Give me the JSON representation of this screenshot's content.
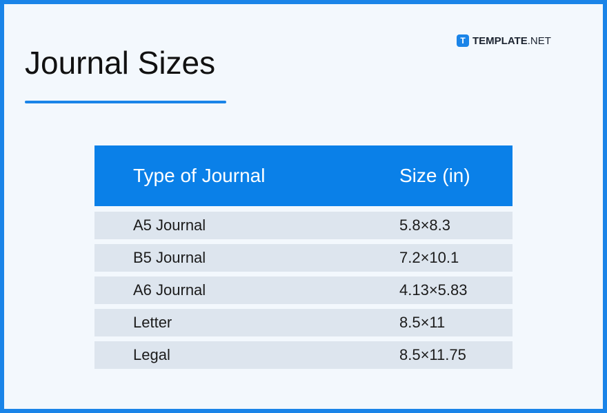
{
  "header": {
    "title": "Journal Sizes",
    "logo": "TEMPLATE",
    "logo_suffix": ".NET",
    "logo_icon": "T"
  },
  "table": {
    "columns": [
      "Type of Journal",
      "Size (in)"
    ],
    "rows": [
      [
        "A5 Journal",
        "5.8×8.3"
      ],
      [
        "B5 Journal",
        "7.2×10.1"
      ],
      [
        "A6 Journal",
        "4.13×5.83"
      ],
      [
        "Letter",
        "8.5×11"
      ],
      [
        "Legal",
        "8.5×11.75"
      ]
    ]
  }
}
